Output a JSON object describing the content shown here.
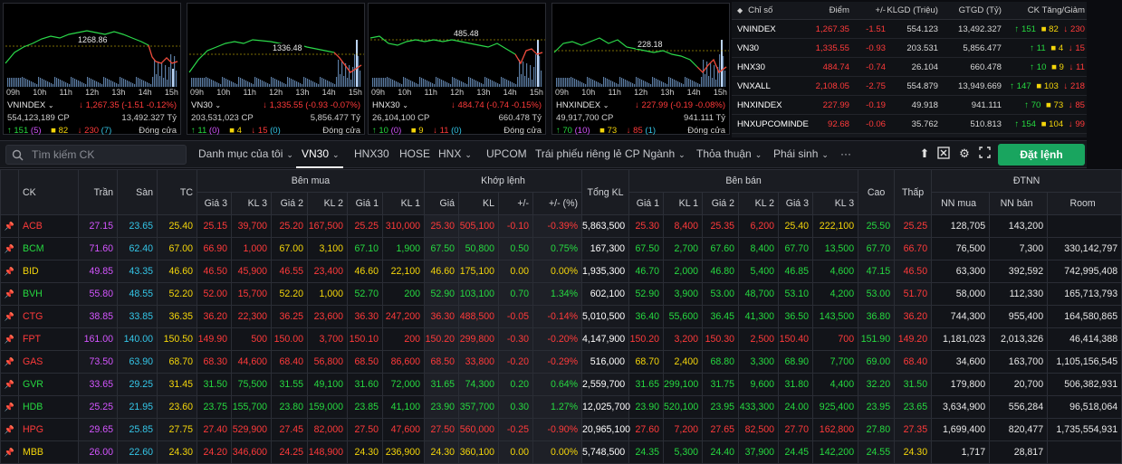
{
  "mini_charts": [
    {
      "ref": "1268.86",
      "name": "VNINDEX",
      "value": "1,267.35",
      "change": "-1.51",
      "pct": "-0.12%",
      "volume": "554,123,189 CP",
      "value_ty": "13,492.327 Tỷ",
      "up": "151",
      "up_ceiling": "5",
      "flat": "82",
      "down": "230",
      "down_floor": "7",
      "status": "Đóng cửa"
    },
    {
      "ref": "1336.48",
      "name": "VN30",
      "value": "1,335.55",
      "change": "-0.93",
      "pct": "-0.07%",
      "volume": "203,531,023 CP",
      "value_ty": "5,856.477 Tỷ",
      "up": "11",
      "up_ceiling": "0",
      "flat": "4",
      "down": "15",
      "down_floor": "0",
      "status": "Đóng cửa"
    },
    {
      "ref": "485.48",
      "name": "HNX30",
      "value": "484.74",
      "change": "-0.74",
      "pct": "-0.15%",
      "volume": "26,104,100 CP",
      "value_ty": "660.478 Tỷ",
      "up": "10",
      "up_ceiling": "0",
      "flat": "9",
      "down": "11",
      "down_floor": "0",
      "status": "Đóng cửa"
    },
    {
      "ref": "228.18",
      "name": "HNXINDEX",
      "value": "227.99",
      "change": "-0.19",
      "pct": "-0.08%",
      "volume": "49,917,700 CP",
      "value_ty": "941.111 Tỷ",
      "up": "70",
      "up_ceiling": "10",
      "flat": "73",
      "down": "85",
      "down_floor": "1",
      "status": "Đóng cửa"
    }
  ],
  "hours": [
    "09h",
    "10h",
    "11h",
    "12h",
    "13h",
    "14h",
    "15h"
  ],
  "index_table": {
    "headers": [
      "Chỉ số",
      "Điểm",
      "+/-",
      "KLGD (Triệu)",
      "GTGD (Tỷ)",
      "CK Tăng/Giảm"
    ],
    "rows": [
      {
        "name": "VNINDEX",
        "point": "1,267.35",
        "chg": "-1.51",
        "klgd": "554.123",
        "gtgd": "13,492.327",
        "up": "151",
        "flat": "82",
        "down": "230"
      },
      {
        "name": "VN30",
        "point": "1,335.55",
        "chg": "-0.93",
        "klgd": "203.531",
        "gtgd": "5,856.477",
        "up": "11",
        "flat": "4",
        "down": "15"
      },
      {
        "name": "HNX30",
        "point": "484.74",
        "chg": "-0.74",
        "klgd": "26.104",
        "gtgd": "660.478",
        "up": "10",
        "flat": "9",
        "down": "11"
      },
      {
        "name": "VNXALL",
        "point": "2,108.05",
        "chg": "-2.75",
        "klgd": "554.879",
        "gtgd": "13,949.669",
        "up": "147",
        "flat": "103",
        "down": "218"
      },
      {
        "name": "HNXINDEX",
        "point": "227.99",
        "chg": "-0.19",
        "klgd": "49.918",
        "gtgd": "941.111",
        "up": "70",
        "flat": "73",
        "down": "85"
      },
      {
        "name": "HNXUPCOMINDE",
        "point": "92.68",
        "chg": "-0.06",
        "klgd": "35.762",
        "gtgd": "510.813",
        "up": "154",
        "flat": "104",
        "down": "99"
      }
    ]
  },
  "toolbar": {
    "search_placeholder": "Tìm kiếm CK",
    "tabs": [
      "Danh mục của tôi",
      "VN30",
      "HNX30",
      "HOSE",
      "HNX",
      "UPCOM",
      "Trái phiếu riêng lẻ",
      "CP Ngành",
      "Thỏa thuận",
      "Phái sinh",
      "···"
    ],
    "order_label": "Đặt lệnh"
  },
  "table": {
    "group_headers": {
      "ck": "CK",
      "tran": "Trần",
      "san": "Sàn",
      "tc": "TC",
      "ben_mua": "Bên mua",
      "khop_lenh": "Khớp lệnh",
      "tong_kl": "Tổng KL",
      "ben_ban": "Bên bán",
      "cao": "Cao",
      "thap": "Thấp",
      "dtnn": "ĐTNN"
    },
    "sub_headers": [
      "Giá 3",
      "KL 3",
      "Giá 2",
      "KL 2",
      "Giá 1",
      "KL 1",
      "Giá",
      "KL",
      "+/-",
      "+/- (%)",
      "Giá 1",
      "KL 1",
      "Giá 2",
      "KL 2",
      "Giá 3",
      "KL 3",
      "NN mua",
      "NN bán",
      "Room"
    ],
    "rows": [
      {
        "ck": "ACB",
        "tran": "27.15",
        "san": "23.65",
        "tc": "25.40",
        "bids": [
          [
            "25.15",
            "39,700"
          ],
          [
            "25.20",
            "167,500"
          ],
          [
            "25.25",
            "310,000"
          ]
        ],
        "match": [
          "25.30",
          "505,100",
          "-0.10",
          "-0.39%"
        ],
        "total": "5,863,500",
        "asks": [
          [
            "25.30",
            "8,400"
          ],
          [
            "25.35",
            "6,200"
          ],
          [
            "25.40",
            "222,100"
          ]
        ],
        "cao": "25.50",
        "thap": "25.25",
        "nn_mua": "128,705",
        "nn_ban": "143,200",
        "room": "",
        "color": "red",
        "bid_colors": [
          "red",
          "red",
          "red"
        ],
        "ask_colors": [
          "red",
          "red",
          "yellow"
        ],
        "cao_color": "green",
        "thap_color": "red"
      },
      {
        "ck": "BCM",
        "tran": "71.60",
        "san": "62.40",
        "tc": "67.00",
        "bids": [
          [
            "66.90",
            "1,000"
          ],
          [
            "67.00",
            "3,100"
          ],
          [
            "67.10",
            "1,900"
          ]
        ],
        "match": [
          "67.50",
          "50,800",
          "0.50",
          "0.75%"
        ],
        "total": "167,300",
        "asks": [
          [
            "67.50",
            "2,700"
          ],
          [
            "67.60",
            "8,400"
          ],
          [
            "67.70",
            "13,500"
          ]
        ],
        "cao": "67.70",
        "thap": "66.70",
        "nn_mua": "76,500",
        "nn_ban": "7,300",
        "room": "330,142,797",
        "color": "green",
        "bid_colors": [
          "red",
          "yellow",
          "green"
        ],
        "ask_colors": [
          "green",
          "green",
          "green"
        ],
        "cao_color": "green",
        "thap_color": "red"
      },
      {
        "ck": "BID",
        "tran": "49.85",
        "san": "43.35",
        "tc": "46.60",
        "bids": [
          [
            "46.50",
            "45,900"
          ],
          [
            "46.55",
            "23,400"
          ],
          [
            "46.60",
            "22,100"
          ]
        ],
        "match": [
          "46.60",
          "175,100",
          "0.00",
          "0.00%"
        ],
        "total": "1,935,300",
        "asks": [
          [
            "46.70",
            "2,000"
          ],
          [
            "46.80",
            "5,400"
          ],
          [
            "46.85",
            "4,600"
          ]
        ],
        "cao": "47.15",
        "thap": "46.50",
        "nn_mua": "63,300",
        "nn_ban": "392,592",
        "room": "742,995,408",
        "color": "yellow",
        "bid_colors": [
          "red",
          "red",
          "yellow"
        ],
        "ask_colors": [
          "green",
          "green",
          "green"
        ],
        "cao_color": "green",
        "thap_color": "red"
      },
      {
        "ck": "BVH",
        "tran": "55.80",
        "san": "48.55",
        "tc": "52.20",
        "bids": [
          [
            "52.00",
            "15,700"
          ],
          [
            "52.20",
            "1,000"
          ],
          [
            "52.70",
            "200"
          ]
        ],
        "match": [
          "52.90",
          "103,100",
          "0.70",
          "1.34%"
        ],
        "total": "602,100",
        "asks": [
          [
            "52.90",
            "3,900"
          ],
          [
            "53.00",
            "48,700"
          ],
          [
            "53.10",
            "4,200"
          ]
        ],
        "cao": "53.00",
        "thap": "51.70",
        "nn_mua": "58,000",
        "nn_ban": "112,330",
        "room": "165,713,793",
        "color": "green",
        "bid_colors": [
          "red",
          "yellow",
          "green"
        ],
        "ask_colors": [
          "green",
          "green",
          "green"
        ],
        "cao_color": "green",
        "thap_color": "red"
      },
      {
        "ck": "CTG",
        "tran": "38.85",
        "san": "33.85",
        "tc": "36.35",
        "bids": [
          [
            "36.20",
            "22,300"
          ],
          [
            "36.25",
            "23,600"
          ],
          [
            "36.30",
            "247,200"
          ]
        ],
        "match": [
          "36.30",
          "488,500",
          "-0.05",
          "-0.14%"
        ],
        "total": "5,010,500",
        "asks": [
          [
            "36.40",
            "55,600"
          ],
          [
            "36.45",
            "41,300"
          ],
          [
            "36.50",
            "143,500"
          ]
        ],
        "cao": "36.80",
        "thap": "36.20",
        "nn_mua": "744,300",
        "nn_ban": "955,400",
        "room": "164,580,865",
        "color": "red",
        "bid_colors": [
          "red",
          "red",
          "red"
        ],
        "ask_colors": [
          "green",
          "green",
          "green"
        ],
        "cao_color": "green",
        "thap_color": "red"
      },
      {
        "ck": "FPT",
        "tran": "161.00",
        "san": "140.00",
        "tc": "150.50",
        "bids": [
          [
            "149.90",
            "500"
          ],
          [
            "150.00",
            "3,700"
          ],
          [
            "150.10",
            "200"
          ]
        ],
        "match": [
          "150.20",
          "299,800",
          "-0.30",
          "-0.20%"
        ],
        "total": "4,147,900",
        "asks": [
          [
            "150.20",
            "3,200"
          ],
          [
            "150.30",
            "2,500"
          ],
          [
            "150.40",
            "700"
          ]
        ],
        "cao": "151.90",
        "thap": "149.20",
        "nn_mua": "1,181,023",
        "nn_ban": "2,013,326",
        "room": "46,414,388",
        "color": "red",
        "bid_colors": [
          "red",
          "red",
          "red"
        ],
        "ask_colors": [
          "red",
          "red",
          "red"
        ],
        "cao_color": "green",
        "thap_color": "red"
      },
      {
        "ck": "GAS",
        "tran": "73.50",
        "san": "63.90",
        "tc": "68.70",
        "bids": [
          [
            "68.30",
            "44,600"
          ],
          [
            "68.40",
            "56,800"
          ],
          [
            "68.50",
            "86,600"
          ]
        ],
        "match": [
          "68.50",
          "33,800",
          "-0.20",
          "-0.29%"
        ],
        "total": "516,000",
        "asks": [
          [
            "68.70",
            "2,400"
          ],
          [
            "68.80",
            "3,300"
          ],
          [
            "68.90",
            "7,700"
          ]
        ],
        "cao": "69.00",
        "thap": "68.40",
        "nn_mua": "34,600",
        "nn_ban": "163,700",
        "room": "1,105,156,545",
        "color": "red",
        "bid_colors": [
          "red",
          "red",
          "red"
        ],
        "ask_colors": [
          "yellow",
          "green",
          "green"
        ],
        "cao_color": "green",
        "thap_color": "red"
      },
      {
        "ck": "GVR",
        "tran": "33.65",
        "san": "29.25",
        "tc": "31.45",
        "bids": [
          [
            "31.50",
            "75,500"
          ],
          [
            "31.55",
            "49,100"
          ],
          [
            "31.60",
            "72,000"
          ]
        ],
        "match": [
          "31.65",
          "74,300",
          "0.20",
          "0.64%"
        ],
        "total": "2,559,700",
        "asks": [
          [
            "31.65",
            "299,100"
          ],
          [
            "31.75",
            "9,600"
          ],
          [
            "31.80",
            "4,400"
          ]
        ],
        "cao": "32.20",
        "thap": "31.50",
        "nn_mua": "179,800",
        "nn_ban": "20,700",
        "room": "506,382,931",
        "color": "green",
        "bid_colors": [
          "green",
          "green",
          "green"
        ],
        "ask_colors": [
          "green",
          "green",
          "green"
        ],
        "cao_color": "green",
        "thap_color": "green"
      },
      {
        "ck": "HDB",
        "tran": "25.25",
        "san": "21.95",
        "tc": "23.60",
        "bids": [
          [
            "23.75",
            "155,700"
          ],
          [
            "23.80",
            "159,000"
          ],
          [
            "23.85",
            "41,100"
          ]
        ],
        "match": [
          "23.90",
          "357,700",
          "0.30",
          "1.27%"
        ],
        "total": "12,025,700",
        "asks": [
          [
            "23.90",
            "520,100"
          ],
          [
            "23.95",
            "433,300"
          ],
          [
            "24.00",
            "925,400"
          ]
        ],
        "cao": "23.95",
        "thap": "23.65",
        "nn_mua": "3,634,900",
        "nn_ban": "556,284",
        "room": "96,518,064",
        "color": "green",
        "bid_colors": [
          "green",
          "green",
          "green"
        ],
        "ask_colors": [
          "green",
          "green",
          "green"
        ],
        "cao_color": "green",
        "thap_color": "green"
      },
      {
        "ck": "HPG",
        "tran": "29.65",
        "san": "25.85",
        "tc": "27.75",
        "bids": [
          [
            "27.40",
            "529,900"
          ],
          [
            "27.45",
            "82,000"
          ],
          [
            "27.50",
            "47,600"
          ]
        ],
        "match": [
          "27.50",
          "560,000",
          "-0.25",
          "-0.90%"
        ],
        "total": "20,965,100",
        "asks": [
          [
            "27.60",
            "7,200"
          ],
          [
            "27.65",
            "82,500"
          ],
          [
            "27.70",
            "162,800"
          ]
        ],
        "cao": "27.80",
        "thap": "27.35",
        "nn_mua": "1,699,400",
        "nn_ban": "820,477",
        "room": "1,735,554,931",
        "color": "red",
        "bid_colors": [
          "red",
          "red",
          "red"
        ],
        "ask_colors": [
          "red",
          "red",
          "red"
        ],
        "cao_color": "green",
        "thap_color": "red"
      },
      {
        "ck": "MBB",
        "tran": "26.00",
        "san": "22.60",
        "tc": "24.30",
        "bids": [
          [
            "24.20",
            "346,600"
          ],
          [
            "24.25",
            "148,900"
          ],
          [
            "24.30",
            "236,900"
          ]
        ],
        "match": [
          "24.30",
          "360,100",
          "0.00",
          "0.00%"
        ],
        "total": "5,748,500",
        "asks": [
          [
            "24.35",
            "5,300"
          ],
          [
            "24.40",
            "37,900"
          ],
          [
            "24.45",
            "142,200"
          ]
        ],
        "cao": "24.55",
        "thap": "24.30",
        "nn_mua": "1,717",
        "nn_ban": "28,817",
        "room": "",
        "color": "yellow",
        "bid_colors": [
          "red",
          "red",
          "yellow"
        ],
        "ask_colors": [
          "green",
          "green",
          "green"
        ],
        "cao_color": "green",
        "thap_color": "yellow"
      }
    ]
  },
  "colors": {
    "up": "#26d940",
    "down": "#ff3a3a",
    "ref": "#f5d60a",
    "ceiling": "#d455ff",
    "floor": "#34c6e8",
    "accent": "#19a55f"
  }
}
